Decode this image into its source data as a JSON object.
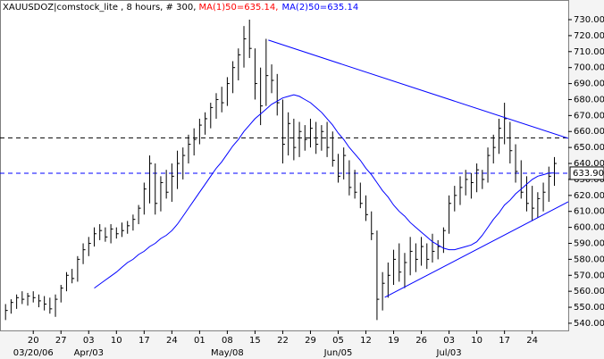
{
  "chart_data": {
    "type": "hlc",
    "title": "XAUUSDOZ|comstock_lite , 8 hours, # 300, ",
    "legend": [
      {
        "text": "MA(1)50=635.14,",
        "color": "#ff0000"
      },
      {
        "text": "MA(2)50=635.14",
        "color": "#0000ff"
      }
    ],
    "xlim": [
      -1,
      101.5
    ],
    "ylim": [
      535.5,
      742.3
    ],
    "yticks": [
      {
        "value": 540,
        "label": "540.00"
      },
      {
        "value": 550,
        "label": "550.00"
      },
      {
        "value": 560,
        "label": "560.00"
      },
      {
        "value": 570,
        "label": "570.00"
      },
      {
        "value": 580,
        "label": "580.00"
      },
      {
        "value": 590,
        "label": "590.00"
      },
      {
        "value": 600,
        "label": "600.00"
      },
      {
        "value": 610,
        "label": "610.00"
      },
      {
        "value": 620,
        "label": "620.00"
      },
      {
        "value": 630,
        "label": "630.00"
      },
      {
        "value": 640,
        "label": "640.00"
      },
      {
        "value": 650,
        "label": "650.00"
      },
      {
        "value": 660,
        "label": "660.00"
      },
      {
        "value": 670,
        "label": "670.00"
      },
      {
        "value": 680,
        "label": "680.00"
      },
      {
        "value": 690,
        "label": "690.00"
      },
      {
        "value": 700,
        "label": "700.00"
      },
      {
        "value": 710,
        "label": "710.00"
      },
      {
        "value": 720,
        "label": "720.00"
      },
      {
        "value": 730,
        "label": "730.00"
      }
    ],
    "xticks": [
      {
        "value": 5,
        "label": "20"
      },
      {
        "value": 10,
        "label": "27"
      },
      {
        "value": 15,
        "label": "03"
      },
      {
        "value": 20,
        "label": "10"
      },
      {
        "value": 25,
        "label": "17"
      },
      {
        "value": 30,
        "label": "24"
      },
      {
        "value": 35,
        "label": "01"
      },
      {
        "value": 40,
        "label": "08"
      },
      {
        "value": 45,
        "label": "15"
      },
      {
        "value": 50,
        "label": "22"
      },
      {
        "value": 55,
        "label": "29"
      },
      {
        "value": 60,
        "label": "05"
      },
      {
        "value": 65,
        "label": "12"
      },
      {
        "value": 70,
        "label": "19"
      },
      {
        "value": 75,
        "label": "26"
      },
      {
        "value": 80,
        "label": "03"
      },
      {
        "value": 85,
        "label": "10"
      },
      {
        "value": 90,
        "label": "17"
      },
      {
        "value": 95,
        "label": "24"
      }
    ],
    "xticks2": [
      {
        "value": 5,
        "label": "03/20/06"
      },
      {
        "value": 15,
        "label": "Apr/03"
      },
      {
        "value": 40,
        "label": "May/08"
      },
      {
        "value": 60,
        "label": "Jun/05"
      },
      {
        "value": 80,
        "label": "Jul/03"
      }
    ],
    "series": [
      {
        "color": "#000000",
        "high": [
          552,
          555,
          558,
          560,
          559,
          560,
          558,
          557,
          556,
          558,
          564,
          572,
          574,
          582,
          590,
          594,
          600,
          602,
          600,
          602,
          600,
          603,
          604,
          608,
          614,
          628,
          645,
          640,
          632,
          636,
          640,
          648,
          650,
          658,
          662,
          668,
          672,
          678,
          684,
          688,
          694,
          704,
          712,
          726,
          730,
          712,
          700,
          718,
          702,
          696,
          680,
          672,
          668,
          666,
          664,
          668,
          666,
          664,
          666,
          660,
          646,
          650,
          642,
          636,
          628,
          620,
          610,
          598,
          572,
          578,
          586,
          590,
          584,
          594,
          590,
          594,
          590,
          596,
          592,
          600,
          620,
          626,
          632,
          636,
          634,
          640,
          636,
          650,
          658,
          668,
          678,
          666,
          652,
          642,
          632,
          626,
          622,
          628,
          638,
          644
        ],
        "low": [
          542,
          546,
          549,
          552,
          551,
          553,
          550,
          548,
          546,
          544,
          553,
          560,
          565,
          566,
          577,
          582,
          588,
          592,
          591,
          590,
          593,
          594,
          596,
          598,
          602,
          608,
          615,
          608,
          610,
          618,
          616,
          624,
          630,
          640,
          645,
          652,
          658,
          662,
          668,
          672,
          676,
          684,
          692,
          700,
          706,
          680,
          664,
          676,
          684,
          670,
          640,
          645,
          642,
          644,
          648,
          650,
          646,
          648,
          644,
          638,
          628,
          630,
          620,
          618,
          612,
          604,
          592,
          542,
          548,
          556,
          564,
          566,
          562,
          570,
          572,
          576,
          574,
          578,
          580,
          584,
          596,
          610,
          614,
          620,
          618,
          622,
          624,
          628,
          640,
          646,
          652,
          640,
          628,
          618,
          610,
          604,
          606,
          610,
          616,
          626
        ],
        "close": [
          548,
          553,
          556,
          555,
          557,
          556,
          554,
          552,
          549,
          555,
          562,
          570,
          568,
          580,
          586,
          590,
          596,
          598,
          594,
          599,
          596,
          598,
          601,
          605,
          612,
          624,
          640,
          615,
          628,
          622,
          632,
          640,
          645,
          652,
          655,
          664,
          668,
          675,
          680,
          678,
          690,
          700,
          708,
          718,
          712,
          690,
          676,
          695,
          692,
          678,
          652,
          665,
          650,
          660,
          655,
          662,
          652,
          660,
          650,
          642,
          632,
          645,
          625,
          622,
          615,
          608,
          596,
          555,
          565,
          570,
          580,
          572,
          578,
          585,
          580,
          588,
          580,
          585,
          588,
          598,
          615,
          620,
          625,
          630,
          628,
          636,
          630,
          645,
          650,
          662,
          668,
          648,
          635,
          622,
          615,
          612,
          618,
          622,
          632,
          640
        ]
      },
      {
        "color": "#0000ff",
        "values": [
          null,
          null,
          null,
          null,
          null,
          null,
          null,
          null,
          null,
          null,
          null,
          null,
          null,
          null,
          null,
          null,
          562,
          564.5,
          567,
          569.5,
          572,
          575,
          578,
          580,
          583,
          585,
          588,
          590,
          593,
          595,
          598,
          602,
          607,
          612,
          617,
          622,
          627,
          632,
          637,
          641,
          646,
          651,
          655,
          660,
          664,
          668,
          671,
          674,
          677,
          679,
          681,
          682,
          683,
          682,
          680,
          678,
          675,
          672,
          668,
          664,
          659,
          655,
          650,
          646,
          642,
          637,
          633,
          628,
          623,
          619,
          614,
          610,
          607,
          603,
          600,
          597,
          594,
          591,
          589,
          587,
          586,
          586,
          587,
          588,
          589,
          591,
          595,
          600,
          605,
          609,
          614,
          617,
          621,
          624,
          627,
          630,
          632,
          633,
          634,
          634
        ]
      }
    ],
    "hlines": [
      {
        "value": 656,
        "color": "#000000"
      },
      {
        "value": 633.9,
        "color": "#0000ff",
        "label": "633.90"
      }
    ],
    "trendlines": [
      {
        "x": [
          47.4,
          101.5
        ],
        "y": [
          717.2,
          655.7
        ],
        "color": "#0000ff"
      },
      {
        "x": [
          68.4,
          101.5
        ],
        "y": [
          556.2,
          616
        ],
        "color": "#0000ff"
      }
    ]
  }
}
